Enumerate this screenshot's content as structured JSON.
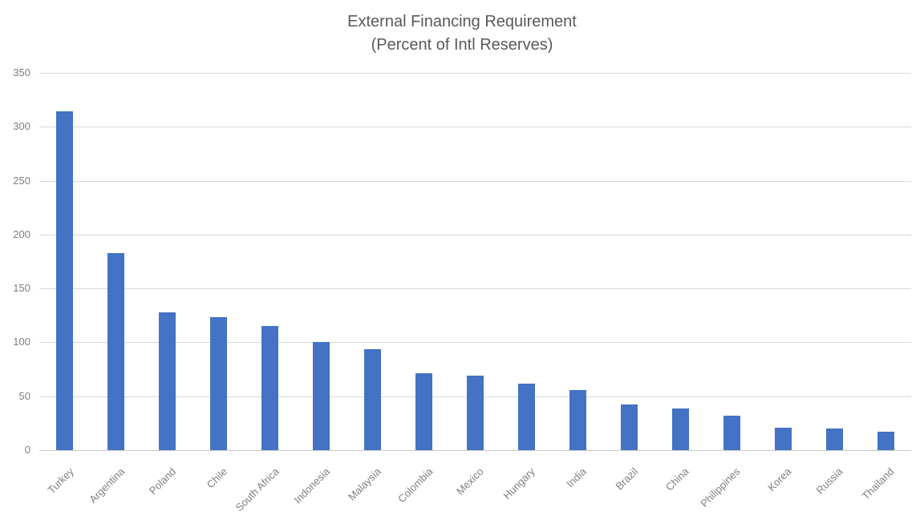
{
  "chart_data": {
    "type": "bar",
    "title": "External Financing Requirement",
    "subtitle": "(Percent of Intl Reserves)",
    "categories": [
      "Turkey",
      "Argentina",
      "Poland",
      "Chile",
      "South Africa",
      "Indonesia",
      "Malaysia",
      "Colombia",
      "Mexico",
      "Hungary",
      "India",
      "Brazil",
      "China",
      "Philippines",
      "Korea",
      "Russia",
      "Thailand"
    ],
    "values": [
      314,
      183,
      128,
      123,
      115,
      100,
      94,
      71,
      69,
      62,
      56,
      42,
      39,
      32,
      21,
      20,
      17
    ],
    "xlabel": "",
    "ylabel": "",
    "ylim": [
      0,
      350
    ],
    "yticks": [
      0,
      50,
      100,
      150,
      200,
      250,
      300,
      350
    ],
    "grid": true,
    "legend": "none",
    "bar_color": "#4472C4",
    "gridline_color": "#D9D9D9",
    "axis_line_color": "#C9C9C9",
    "title_color": "#595959",
    "tick_label_color": "#7F7F7F"
  }
}
